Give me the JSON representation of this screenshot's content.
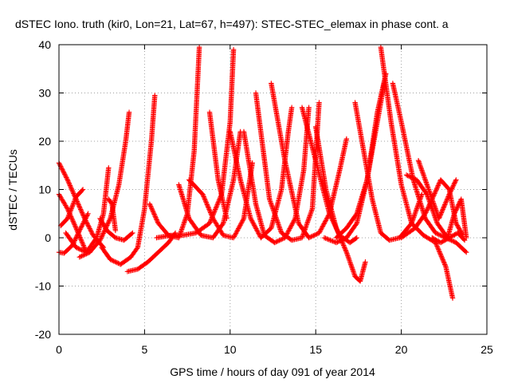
{
  "chart_data": {
    "type": "scatter",
    "title": "dSTEC Iono. truth (kir0, Lon=21, Lat=67, h=497): STEC-STEC_elemax in phase cont. a",
    "xlabel": "GPS time / hours of day 091 of year 2014",
    "ylabel": "dSTEC  / TECUs",
    "xlim": [
      0,
      25
    ],
    "ylim": [
      -20,
      40
    ],
    "xticks": [
      0,
      5,
      10,
      15,
      20,
      25
    ],
    "yticks": [
      -20,
      -10,
      0,
      10,
      20,
      30,
      40
    ],
    "grid": true,
    "marker": "+",
    "color": "#ff0000",
    "series": [
      {
        "x": [
          0.0,
          0.5,
          1.0,
          1.5,
          2.0,
          2.6
        ],
        "y": [
          15.5,
          12,
          8,
          4,
          0.5,
          -2
        ]
      },
      {
        "x": [
          0.0,
          0.5,
          1.0,
          1.6
        ],
        "y": [
          9,
          6,
          2,
          -3
        ]
      },
      {
        "x": [
          0.0,
          0.3,
          0.8,
          1.2,
          1.7
        ],
        "y": [
          -3,
          -3.2,
          -1.5,
          1.5,
          5
        ]
      },
      {
        "x": [
          0.1,
          0.5,
          1.0,
          1.4
        ],
        "y": [
          2.5,
          4,
          8.5,
          10
        ]
      },
      {
        "x": [
          0.4,
          1.0,
          1.6,
          2.2,
          2.6,
          2.9
        ],
        "y": [
          1,
          -2,
          -3,
          0,
          5,
          14.5
        ]
      },
      {
        "x": [
          1.2,
          1.8,
          2.4,
          3.0,
          3.5,
          3.9,
          4.1
        ],
        "y": [
          -4,
          -3,
          -0.5,
          4,
          11,
          20,
          26
        ]
      },
      {
        "x": [
          2.4,
          2.8,
          3.3,
          3.8,
          4.3
        ],
        "y": [
          4,
          1.5,
          0,
          -0.5,
          1
        ]
      },
      {
        "x": [
          2.5,
          3.0,
          3.6,
          4.2,
          4.6,
          5.0,
          5.4,
          5.6
        ],
        "y": [
          -2,
          -4.5,
          -5.5,
          -4,
          -2,
          6,
          20,
          29.5
        ]
      },
      {
        "x": [
          2.9,
          3.1,
          3.3
        ],
        "y": [
          8,
          7,
          1.5
        ]
      },
      {
        "x": [
          4.0,
          4.6,
          5.2,
          5.8,
          6.4,
          6.8
        ],
        "y": [
          -7,
          -6.5,
          -5,
          -3,
          -1,
          1
        ]
      },
      {
        "x": [
          5.3,
          5.8,
          6.4,
          7.0,
          7.5,
          7.9,
          8.2
        ],
        "y": [
          7,
          3,
          0.5,
          0,
          5,
          18,
          39.5
        ]
      },
      {
        "x": [
          5.7,
          6.5,
          7.2,
          8.0,
          8.8,
          9.5,
          10.0,
          10.2
        ],
        "y": [
          0,
          0.5,
          0.5,
          1,
          3,
          9,
          24,
          39
        ]
      },
      {
        "x": [
          7.0,
          7.6,
          8.3,
          9.0,
          9.6,
          10.2,
          10.6
        ],
        "y": [
          11,
          4,
          0.5,
          0,
          3,
          12,
          22
        ]
      },
      {
        "x": [
          7.6,
          8.4,
          9.0,
          9.6,
          10.2,
          10.8,
          11.3
        ],
        "y": [
          12,
          9,
          4,
          0.5,
          0,
          4,
          15.5
        ]
      },
      {
        "x": [
          8.8,
          9.3,
          9.8
        ],
        "y": [
          26,
          12,
          4
        ]
      },
      {
        "x": [
          10.0,
          10.6,
          11.2,
          11.8,
          12.4,
          13.0,
          13.4,
          13.6
        ],
        "y": [
          22,
          12,
          4,
          0,
          2,
          10,
          22,
          27
        ]
      },
      {
        "x": [
          10.8,
          11.5,
          12.0,
          12.6,
          13.2,
          13.8,
          14.3,
          14.6
        ],
        "y": [
          22,
          7,
          0.5,
          -1,
          0,
          4,
          14,
          27
        ]
      },
      {
        "x": [
          11.5,
          12.3,
          13.0,
          13.6,
          14.2,
          14.8,
          15.2
        ],
        "y": [
          30,
          8,
          1,
          -0.5,
          0,
          6,
          28
        ]
      },
      {
        "x": [
          12.4,
          13.2,
          14.0,
          14.6,
          15.2,
          15.8,
          16.4,
          16.8
        ],
        "y": [
          32,
          16,
          3,
          0,
          1,
          5,
          14,
          20.5
        ]
      },
      {
        "x": [
          14.2,
          15.0,
          15.8,
          16.4,
          17.0,
          17.4
        ],
        "y": [
          27,
          16,
          5,
          0.5,
          -1,
          0
        ]
      },
      {
        "x": [
          15.0,
          15.6,
          16.2,
          16.8,
          17.3,
          17.6,
          17.9
        ],
        "y": [
          23,
          10,
          2,
          -3,
          -8,
          -9,
          -5
        ]
      },
      {
        "x": [
          15.5,
          16.2,
          16.8,
          17.4,
          18.0,
          18.6,
          19.1
        ],
        "y": [
          0,
          -1,
          0,
          3,
          12,
          26,
          34
        ]
      },
      {
        "x": [
          16.2,
          16.8,
          17.4,
          18.0,
          18.5,
          19.0
        ],
        "y": [
          0,
          2,
          5,
          12,
          22,
          32
        ]
      },
      {
        "x": [
          17.3,
          17.8,
          18.3,
          18.8,
          19.3,
          19.9,
          20.6,
          21.2
        ],
        "y": [
          28,
          18,
          8,
          1,
          -0.5,
          0,
          3,
          9
        ]
      },
      {
        "x": [
          18.8,
          19.4,
          20.0,
          20.6,
          21.3,
          22.0,
          22.6,
          23.0
        ],
        "y": [
          39.5,
          24,
          11,
          3,
          0.5,
          -1,
          -6,
          -12.5
        ]
      },
      {
        "x": [
          19.5,
          20.0,
          20.7,
          21.4,
          22.0,
          22.6,
          23.2,
          23.8
        ],
        "y": [
          32,
          24,
          12,
          4,
          1,
          0,
          -1,
          -3
        ]
      },
      {
        "x": [
          20.3,
          20.9,
          21.5,
          22.1,
          22.7,
          23.1,
          23.5,
          23.8
        ],
        "y": [
          13,
          12,
          9,
          3,
          0,
          5,
          8,
          0
        ]
      },
      {
        "x": [
          20.0,
          20.8,
          21.4,
          21.8,
          22.3,
          22.8,
          23.2,
          23.6
        ],
        "y": [
          0,
          2,
          5,
          8,
          12,
          10,
          3,
          0.5
        ]
      },
      {
        "x": [
          21.0,
          21.6,
          22.2,
          22.8,
          23.2
        ],
        "y": [
          16,
          10,
          4,
          9,
          12
        ]
      },
      {
        "x": [
          21.8,
          22.3,
          22.8,
          23.3,
          23.7
        ],
        "y": [
          0,
          -1,
          0,
          1,
          -0.5
        ]
      }
    ]
  }
}
